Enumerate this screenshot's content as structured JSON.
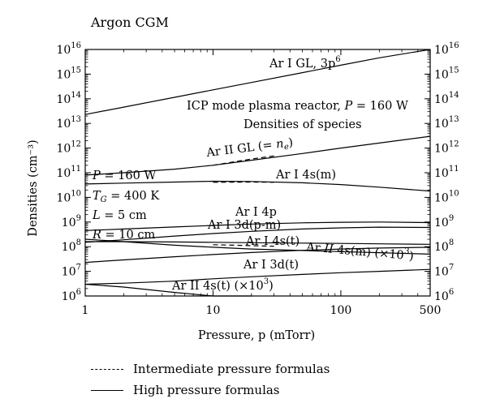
{
  "figure_title": "Argon CGM",
  "chart_data": {
    "type": "line",
    "title": "Argon CGM",
    "xlabel": "Pressure, p (mTorr)",
    "ylabel": "Densities (cm⁻³)",
    "xscale": "log",
    "yscale": "log",
    "xlim": [
      1,
      500
    ],
    "ylim": [
      1000000.0,
      1e+16
    ],
    "x_ticks": [
      "1",
      "10",
      "100",
      "500"
    ],
    "y_ticks": [
      "10^6",
      "10^7",
      "10^8",
      "10^9",
      "10^10",
      "10^11",
      "10^12",
      "10^13",
      "10^14",
      "10^15",
      "10^16"
    ],
    "grid": false,
    "legend_position": "bottom, below plot",
    "legend": [
      {
        "style": "dashed",
        "label": "Intermediate pressure formulas"
      },
      {
        "style": "solid",
        "label": "High pressure formulas"
      }
    ],
    "series": [
      {
        "name": "Ar I GL, 3p6",
        "style": "solid",
        "x": [
          1,
          2,
          5,
          10,
          20,
          50,
          100,
          200,
          500
        ],
        "y": [
          23000000000000.0,
          46000000000000.0,
          115000000000000.0,
          230000000000000.0,
          460000000000000.0,
          1150000000000000.0,
          2300000000000000.0,
          4600000000000000.0,
          1e+16
        ]
      },
      {
        "name": "Ar II GL (= ne)",
        "style": "solid",
        "x": [
          1,
          2,
          5,
          10,
          20,
          50,
          100,
          200,
          500
        ],
        "y": [
          80000000000.0,
          100000000000.0,
          140000000000.0,
          200000000000.0,
          320000000000.0,
          600000000000.0,
          1000000000000.0,
          1600000000000.0,
          3000000000000.0
        ]
      },
      {
        "name": "Ar II GL (= ne) intermediate",
        "style": "dashed",
        "x": [
          10,
          20,
          30
        ],
        "y": [
          200000000000.0,
          360000000000.0,
          480000000000.0
        ]
      },
      {
        "name": "Ar I 4s(m)",
        "style": "solid",
        "x": [
          1,
          2,
          5,
          10,
          20,
          50,
          100,
          200,
          500
        ],
        "y": [
          35000000000.0,
          38000000000.0,
          42000000000.0,
          45000000000.0,
          44000000000.0,
          39000000000.0,
          33000000000.0,
          26000000000.0,
          18000000000.0
        ]
      },
      {
        "name": "Ar I 4s(m) intermediate",
        "style": "dashed",
        "x": [
          10,
          20,
          30
        ],
        "y": [
          41000000000.0,
          42000000000.0,
          41000000000.0
        ]
      },
      {
        "name": "Ar I 4p",
        "style": "solid",
        "x": [
          1,
          2,
          5,
          10,
          20,
          50,
          100,
          200,
          500
        ],
        "y": [
          450000000.0,
          520000000.0,
          630000000.0,
          730000000.0,
          830000000.0,
          930000000.0,
          980000000.0,
          1000000000.0,
          950000000.0
        ]
      },
      {
        "name": "Ar I 3d(p-m)",
        "style": "solid",
        "x": [
          1,
          2,
          5,
          10,
          20,
          50,
          100,
          200,
          500
        ],
        "y": [
          150000000.0,
          190000000.0,
          270000000.0,
          340000000.0,
          420000000.0,
          520000000.0,
          580000000.0,
          620000000.0,
          600000000.0
        ]
      },
      {
        "name": "Ar I 4s(t)",
        "style": "solid",
        "x": [
          1,
          2,
          5,
          10,
          20,
          50,
          100,
          200,
          500
        ],
        "y": [
          200000000.0,
          160000000.0,
          115000000.0,
          95000000.0,
          80000000.0,
          70000000.0,
          63000000.0,
          57000000.0,
          50000000.0
        ]
      },
      {
        "name": "Ar I 4s(t) intermediate",
        "style": "dashed",
        "x": [
          10,
          20,
          30
        ],
        "y": [
          120000000.0,
          110000000.0,
          105000000.0
        ]
      },
      {
        "name": "Ar II 4s(m) (×10^3)",
        "style": "solid",
        "x": [
          1,
          2,
          5,
          10,
          20,
          50,
          100,
          200,
          500
        ],
        "y": [
          160000000.0,
          160000000.0,
          155000000.0,
          150000000.0,
          145000000.0,
          140000000.0,
          135000000.0,
          130000000.0,
          125000000.0
        ]
      },
      {
        "name": "Ar I 3d(t)",
        "style": "solid",
        "x": [
          1,
          2,
          5,
          10,
          20,
          50,
          100,
          200,
          500
        ],
        "y": [
          23000000.0,
          29000000.0,
          39000000.0,
          48000000.0,
          58000000.0,
          71000000.0,
          80000000.0,
          88000000.0,
          95000000.0
        ]
      },
      {
        "name": "Ar II 4s(t) (×10^3)",
        "style": "solid",
        "x": [
          1,
          2,
          5,
          10,
          20,
          50,
          100,
          200,
          500
        ],
        "y": [
          3000000.0,
          3300000.0,
          4000000.0,
          5000000.0,
          6000000.0,
          7500000.0,
          8800000.0,
          10000000.0,
          12000000.0
        ]
      },
      {
        "name": "lower Ar II 4s(t) branch",
        "style": "solid",
        "x": [
          1,
          2,
          5,
          10,
          20
        ],
        "y": [
          3000000.0,
          2300000.0,
          1400000.0,
          1000000.0,
          1000000.0
        ]
      }
    ],
    "annotations": {
      "gl": "Ar I GL, 3p",
      "gl_sup": "6",
      "icp_pre": "ICP mode plasma reactor, ",
      "icp_p": "P",
      "icp_post": " = 160 W",
      "densities": "Densities of species",
      "ar2gl_pre": "Ar II GL (= ",
      "ar2gl_n": "n",
      "ar2gl_sub": "e",
      "ar2gl_post": ")",
      "ar4sm": "Ar I 4s(m)",
      "ar4p": "Ar I 4p",
      "ar3dpm": "Ar I 3d(p-m)",
      "ar4st": "Ar I 4s(t)",
      "ar2_4sm_a": "Ar ",
      "ar2_4sm_b": "II",
      "ar2_4sm_c": " 4s(m) (×10",
      "ar2_4sm_sup": "3",
      "ar2_4sm_d": ")",
      "ar3dt": "Ar I 3d(t)",
      "ar2_4st": "Ar II 4s(t) (×10",
      "ar2_4st_sup": "3",
      "ar2_4st_d": ")",
      "param_p_sym": "P",
      "param_p_val": " = 160 W",
      "param_tg_sym": "T",
      "param_tg_sub": "G",
      "param_tg_val": " = 400 K",
      "param_l_sym": "L",
      "param_l_val": " = 5 cm",
      "param_r_sym": "R",
      "param_r_val": " = 10 cm"
    }
  }
}
